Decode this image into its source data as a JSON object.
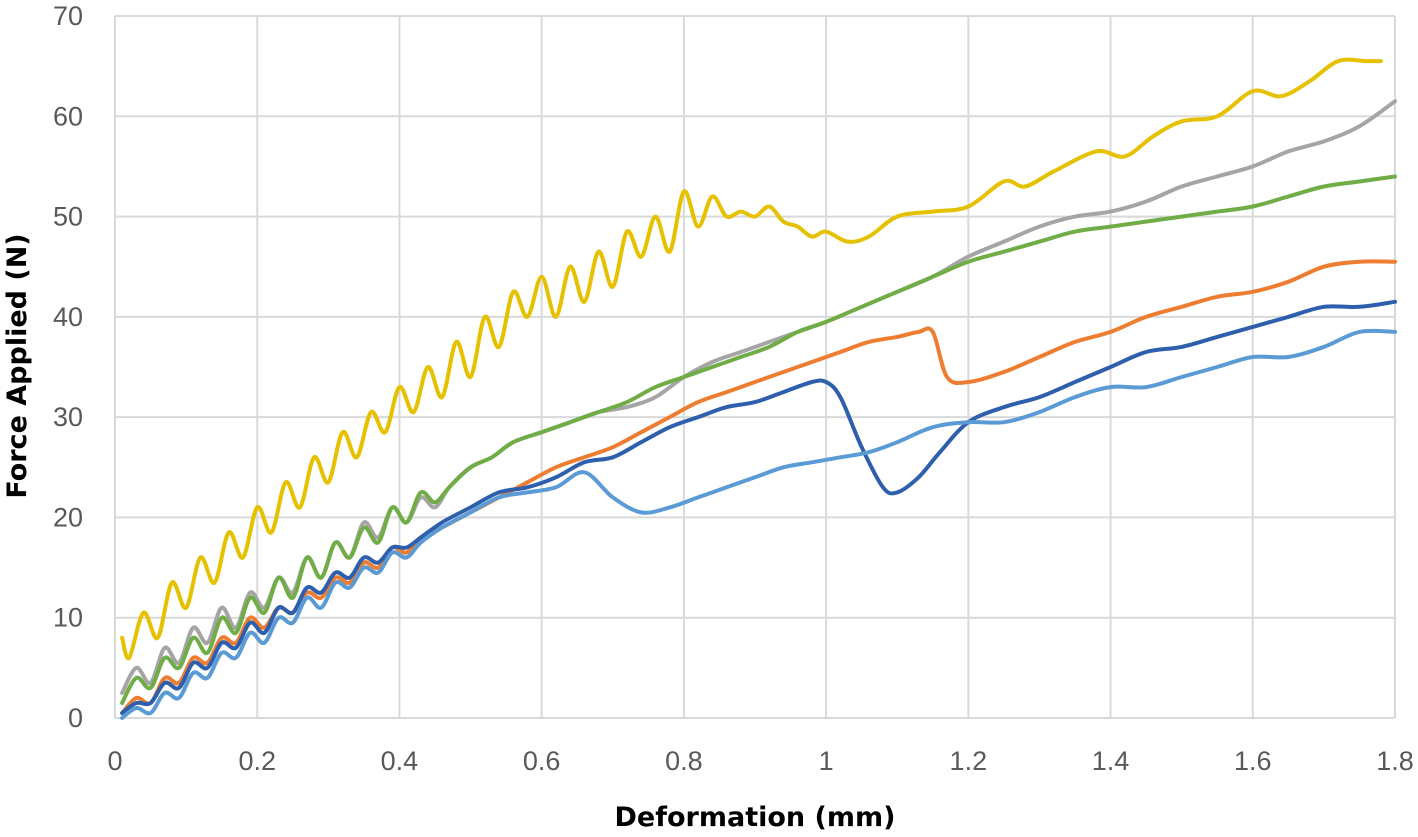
{
  "chart_data": {
    "type": "line",
    "title": "",
    "xlabel": "Deformation (mm)",
    "ylabel": "Force Applied (N)",
    "xlim": [
      0,
      1.8
    ],
    "ylim": [
      0,
      70
    ],
    "x_ticks": [
      "0",
      "0.2",
      "0.4",
      "0.6",
      "0.8",
      "1",
      "1.2",
      "1.4",
      "1.6",
      "1.8"
    ],
    "y_ticks": [
      "0",
      "10",
      "20",
      "30",
      "40",
      "50",
      "60",
      "70"
    ],
    "grid": true,
    "legend": "none",
    "series": [
      {
        "color": "#E5C100",
        "x": [
          0.01,
          0.02,
          0.04,
          0.06,
          0.08,
          0.1,
          0.12,
          0.14,
          0.16,
          0.18,
          0.2,
          0.22,
          0.24,
          0.26,
          0.28,
          0.3,
          0.32,
          0.34,
          0.36,
          0.38,
          0.4,
          0.42,
          0.44,
          0.46,
          0.48,
          0.5,
          0.52,
          0.54,
          0.56,
          0.58,
          0.6,
          0.62,
          0.64,
          0.66,
          0.68,
          0.7,
          0.72,
          0.74,
          0.76,
          0.78,
          0.8,
          0.82,
          0.84,
          0.86,
          0.88,
          0.9,
          0.92,
          0.94,
          0.96,
          0.98,
          1.0,
          1.03,
          1.06,
          1.1,
          1.15,
          1.2,
          1.25,
          1.28,
          1.32,
          1.38,
          1.42,
          1.46,
          1.5,
          1.55,
          1.6,
          1.64,
          1.68,
          1.72,
          1.76,
          1.78
        ],
        "y": [
          8,
          6,
          10.5,
          8,
          13.5,
          11,
          16,
          13.5,
          18.5,
          16,
          21,
          18.5,
          23.5,
          21,
          26,
          23.5,
          28.5,
          26,
          30.5,
          28.5,
          33,
          30.5,
          35,
          32,
          37.5,
          34,
          40,
          37,
          42.5,
          40,
          44,
          40,
          45,
          41.5,
          46.5,
          43,
          48.5,
          46,
          50,
          46.5,
          52.5,
          49,
          52,
          50,
          50.5,
          50,
          51,
          49.5,
          49,
          48,
          48.5,
          47.5,
          48,
          50,
          50.5,
          51,
          53.5,
          53,
          54.5,
          56.5,
          56,
          58,
          59.5,
          60,
          62.5,
          62,
          63.5,
          65.5,
          65.5,
          65.5
        ]
      },
      {
        "color": "#A5A5A5",
        "x": [
          0.01,
          0.03,
          0.05,
          0.07,
          0.09,
          0.11,
          0.13,
          0.15,
          0.17,
          0.19,
          0.21,
          0.23,
          0.25,
          0.27,
          0.29,
          0.31,
          0.33,
          0.35,
          0.37,
          0.39,
          0.41,
          0.43,
          0.45,
          0.47,
          0.5,
          0.53,
          0.56,
          0.6,
          0.64,
          0.68,
          0.72,
          0.76,
          0.8,
          0.84,
          0.88,
          0.92,
          0.96,
          1.0,
          1.05,
          1.1,
          1.15,
          1.2,
          1.25,
          1.3,
          1.35,
          1.4,
          1.45,
          1.5,
          1.55,
          1.6,
          1.65,
          1.7,
          1.75,
          1.8
        ],
        "y": [
          2.5,
          5,
          3.5,
          7,
          5.5,
          9,
          7.5,
          11,
          9,
          12.5,
          11,
          14,
          12.5,
          16,
          14,
          17.5,
          16,
          19.5,
          18,
          21,
          19.5,
          22,
          21,
          23,
          25,
          26,
          27.5,
          28.5,
          29.5,
          30.5,
          31,
          32,
          34,
          35.5,
          36.5,
          37.5,
          38.5,
          39.5,
          41,
          42.5,
          44,
          46,
          47.5,
          49,
          50,
          50.5,
          51.5,
          53,
          54,
          55,
          56.5,
          57.5,
          59,
          61.5
        ]
      },
      {
        "color": "#70AD47",
        "x": [
          0.01,
          0.03,
          0.05,
          0.07,
          0.09,
          0.11,
          0.13,
          0.15,
          0.17,
          0.19,
          0.21,
          0.23,
          0.25,
          0.27,
          0.29,
          0.31,
          0.33,
          0.35,
          0.37,
          0.39,
          0.41,
          0.43,
          0.45,
          0.47,
          0.5,
          0.53,
          0.56,
          0.6,
          0.64,
          0.68,
          0.72,
          0.76,
          0.8,
          0.84,
          0.88,
          0.92,
          0.96,
          1.0,
          1.05,
          1.1,
          1.15,
          1.2,
          1.25,
          1.3,
          1.35,
          1.4,
          1.45,
          1.5,
          1.55,
          1.6,
          1.65,
          1.7,
          1.75,
          1.8
        ],
        "y": [
          1.5,
          4,
          3,
          6,
          5,
          8,
          6.5,
          10,
          8.5,
          12,
          10.5,
          14,
          12,
          16,
          14,
          17.5,
          16,
          19,
          17.5,
          21,
          19.5,
          22.5,
          21.5,
          23,
          25,
          26,
          27.5,
          28.5,
          29.5,
          30.5,
          31.5,
          33,
          34,
          35,
          36,
          37,
          38.5,
          39.5,
          41,
          42.5,
          44,
          45.5,
          46.5,
          47.5,
          48.5,
          49,
          49.5,
          50,
          50.5,
          51,
          52,
          53,
          53.5,
          54
        ]
      },
      {
        "color": "#ED7D31",
        "x": [
          0.01,
          0.03,
          0.05,
          0.07,
          0.09,
          0.11,
          0.13,
          0.15,
          0.17,
          0.19,
          0.21,
          0.23,
          0.25,
          0.27,
          0.29,
          0.31,
          0.33,
          0.35,
          0.37,
          0.39,
          0.41,
          0.43,
          0.46,
          0.5,
          0.54,
          0.58,
          0.62,
          0.66,
          0.7,
          0.74,
          0.78,
          0.82,
          0.86,
          0.9,
          0.94,
          0.98,
          1.02,
          1.06,
          1.1,
          1.13,
          1.15,
          1.17,
          1.2,
          1.25,
          1.3,
          1.35,
          1.4,
          1.45,
          1.5,
          1.55,
          1.6,
          1.65,
          1.7,
          1.75,
          1.8
        ],
        "y": [
          0.5,
          2,
          1.5,
          4,
          3.5,
          6,
          5.5,
          8,
          7.5,
          10,
          9,
          11,
          10.5,
          12.5,
          12,
          14,
          13.5,
          15.5,
          15,
          17,
          16.5,
          18,
          19,
          20.5,
          22,
          23.5,
          25,
          26,
          27,
          28.5,
          30,
          31.5,
          32.5,
          33.5,
          34.5,
          35.5,
          36.5,
          37.5,
          38,
          38.5,
          38.5,
          34,
          33.5,
          34.5,
          36,
          37.5,
          38.5,
          40,
          41,
          42,
          42.5,
          43.5,
          45,
          45.5,
          45.5
        ]
      },
      {
        "color": "#2E5FAD",
        "x": [
          0.01,
          0.03,
          0.05,
          0.07,
          0.09,
          0.11,
          0.13,
          0.15,
          0.17,
          0.19,
          0.21,
          0.23,
          0.25,
          0.27,
          0.29,
          0.31,
          0.33,
          0.35,
          0.37,
          0.39,
          0.41,
          0.43,
          0.46,
          0.5,
          0.54,
          0.58,
          0.62,
          0.66,
          0.7,
          0.74,
          0.78,
          0.82,
          0.86,
          0.9,
          0.94,
          0.98,
          1.0,
          1.02,
          1.05,
          1.08,
          1.1,
          1.13,
          1.16,
          1.2,
          1.25,
          1.3,
          1.35,
          1.4,
          1.45,
          1.5,
          1.55,
          1.6,
          1.65,
          1.7,
          1.75,
          1.8
        ],
        "y": [
          0.5,
          1.5,
          1.5,
          3.5,
          3,
          5.5,
          5,
          7.5,
          7,
          9.5,
          8.5,
          11,
          10.5,
          13,
          12.5,
          14.5,
          14,
          16,
          15.5,
          17,
          17,
          18,
          19.5,
          21,
          22.5,
          23,
          24,
          25.5,
          26,
          27.5,
          29,
          30,
          31,
          31.5,
          32.5,
          33.5,
          33.5,
          32,
          27,
          23,
          22.5,
          24,
          26.5,
          29.5,
          31,
          32,
          33.5,
          35,
          36.5,
          37,
          38,
          39,
          40,
          41,
          41,
          41.5
        ]
      },
      {
        "color": "#5B9BD5",
        "x": [
          0.01,
          0.03,
          0.05,
          0.07,
          0.09,
          0.11,
          0.13,
          0.15,
          0.17,
          0.19,
          0.21,
          0.23,
          0.25,
          0.27,
          0.29,
          0.31,
          0.33,
          0.35,
          0.37,
          0.39,
          0.41,
          0.43,
          0.46,
          0.5,
          0.54,
          0.58,
          0.62,
          0.66,
          0.7,
          0.74,
          0.78,
          0.82,
          0.86,
          0.9,
          0.94,
          0.98,
          1.02,
          1.06,
          1.1,
          1.15,
          1.2,
          1.25,
          1.3,
          1.35,
          1.4,
          1.45,
          1.5,
          1.55,
          1.6,
          1.65,
          1.7,
          1.75,
          1.8
        ],
        "y": [
          0,
          1,
          0.5,
          2.5,
          2,
          4.5,
          4,
          6.5,
          6,
          8.5,
          7.5,
          10,
          9.5,
          12,
          11,
          13.5,
          13,
          15,
          14.5,
          16.5,
          16,
          17.5,
          19,
          20.5,
          22,
          22.5,
          23,
          24.5,
          22,
          20.5,
          21,
          22,
          23,
          24,
          25,
          25.5,
          26,
          26.5,
          27.5,
          29,
          29.5,
          29.5,
          30.5,
          32,
          33,
          33,
          34,
          35,
          36,
          36,
          37,
          38.5,
          38.5
        ]
      }
    ]
  }
}
